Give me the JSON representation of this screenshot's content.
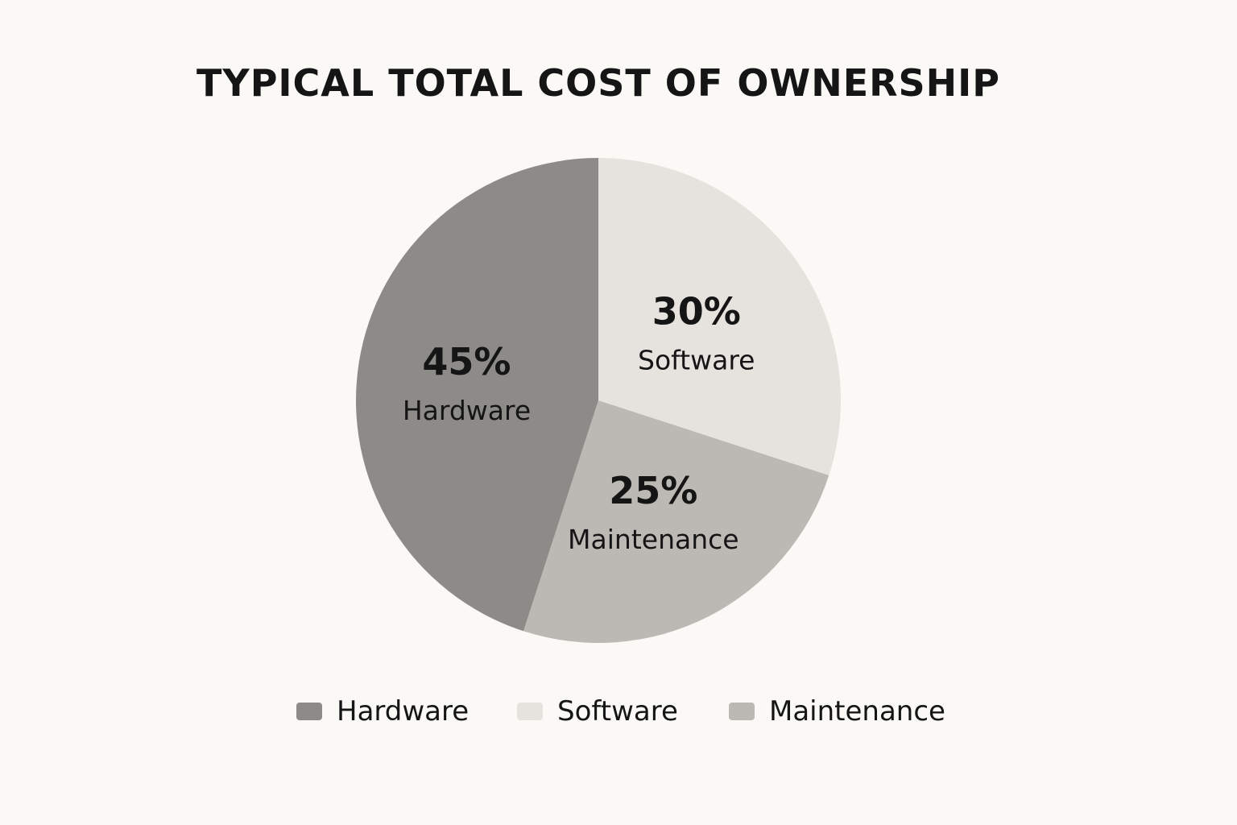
{
  "chart_data": {
    "type": "pie",
    "title": "TYPICAL TOTAL COST OF OWNERSHIP",
    "start_angle_deg": 0,
    "direction": "clockwise",
    "slices": [
      {
        "label": "Software",
        "value": 30,
        "value_label": "30%",
        "color": "#e6e3de"
      },
      {
        "label": "Maintenance",
        "value": 25,
        "value_label": "25%",
        "color": "#bcb9b4"
      },
      {
        "label": "Hardware",
        "value": 45,
        "value_label": "45%",
        "color": "#8d8b88"
      }
    ],
    "legend": {
      "position": "bottom",
      "items": [
        {
          "label": "Hardware",
          "color": "#8d8b88"
        },
        {
          "label": "Software",
          "color": "#e6e3de"
        },
        {
          "label": "Maintenance",
          "color": "#bcb9b4"
        }
      ]
    }
  }
}
